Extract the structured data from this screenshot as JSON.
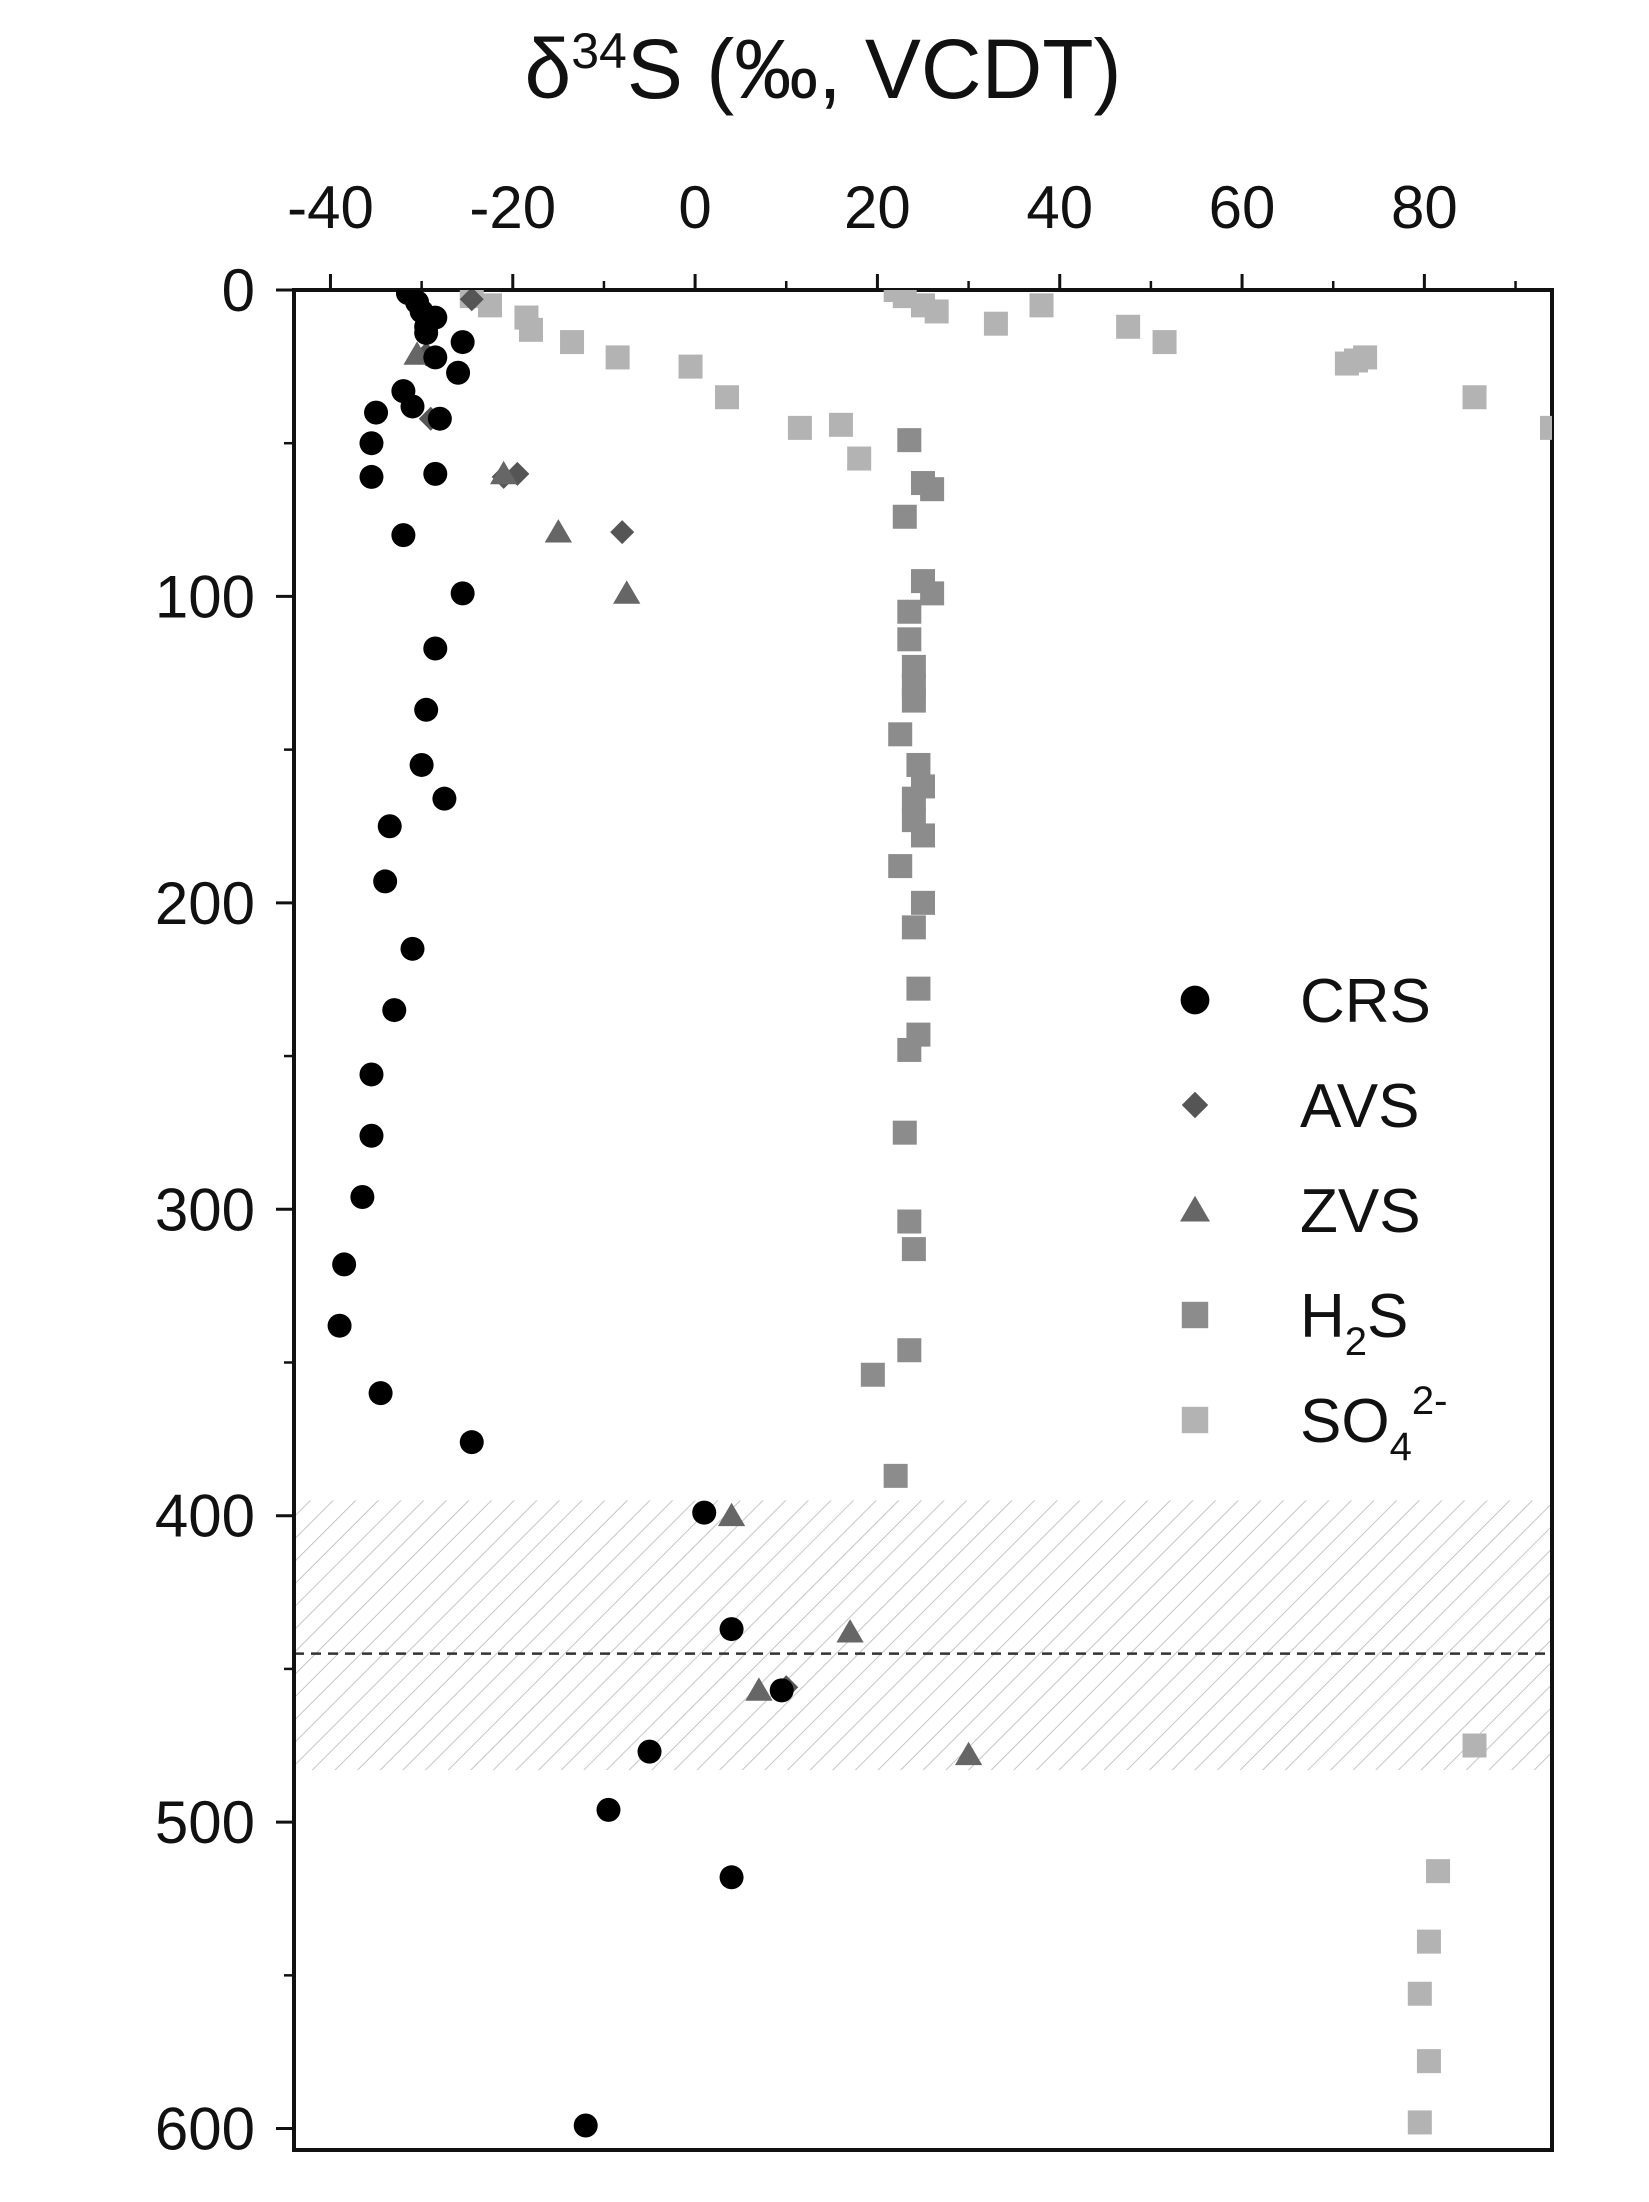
{
  "chart_data": {
    "type": "scatter",
    "title": "δ34S (‰, VCDT)",
    "title_parts": {
      "prefix": "δ",
      "superscript": "34",
      "suffix": "S (‰, VCDT)"
    },
    "xlabel": "δ34S (‰, VCDT)",
    "ylabel": "",
    "xlim": [
      -44,
      94
    ],
    "ylim": [
      0,
      607
    ],
    "y_inverted": true,
    "x_axis_position": "top",
    "x_ticks": [
      -40,
      -20,
      0,
      20,
      40,
      60,
      80
    ],
    "x_tick_labels": [
      "-40",
      "-20",
      "0",
      "20",
      "40",
      "60",
      "80"
    ],
    "y_ticks": [
      0,
      100,
      200,
      300,
      400,
      500,
      600
    ],
    "y_tick_labels": [
      "0",
      "100",
      "200",
      "300",
      "400",
      "500",
      "600"
    ],
    "grid": false,
    "legend_position": "right-middle",
    "shaded_band": {
      "y_from": 395,
      "y_to": 483,
      "pattern": "diagonal-hatch"
    },
    "dashed_line_y": 445,
    "series": [
      {
        "name": "CRS",
        "marker": "circle",
        "color": "#000000",
        "legend_label": "CRS",
        "points": [
          [
            -31.5,
            1
          ],
          [
            -30.5,
            4
          ],
          [
            -30,
            7
          ],
          [
            -28.5,
            9
          ],
          [
            -29.5,
            12
          ],
          [
            -29.5,
            14
          ],
          [
            -25.5,
            17
          ],
          [
            -28.5,
            22
          ],
          [
            -26,
            27
          ],
          [
            -32,
            33
          ],
          [
            -31,
            38
          ],
          [
            -35,
            40
          ],
          [
            -28,
            42
          ],
          [
            -35.5,
            50
          ],
          [
            -35.5,
            61
          ],
          [
            -28.5,
            60
          ],
          [
            -32,
            80
          ],
          [
            -25.5,
            99
          ],
          [
            -28.5,
            117
          ],
          [
            -29.5,
            137
          ],
          [
            -30,
            155
          ],
          [
            -27.5,
            166
          ],
          [
            -33.5,
            175
          ],
          [
            -34,
            193
          ],
          [
            -31,
            215
          ],
          [
            -33,
            235
          ],
          [
            -35.5,
            256
          ],
          [
            -35.5,
            276
          ],
          [
            -36.5,
            296
          ],
          [
            -38.5,
            318
          ],
          [
            -39,
            338
          ],
          [
            -34.5,
            360
          ],
          [
            -24.5,
            376
          ],
          [
            1,
            399
          ],
          [
            4,
            437
          ],
          [
            9.5,
            457
          ],
          [
            -5,
            477
          ],
          [
            -9.5,
            496
          ],
          [
            4,
            518
          ],
          [
            -12,
            599
          ]
        ]
      },
      {
        "name": "AVS",
        "marker": "diamond",
        "color": "#555555",
        "legend_label": "AVS",
        "points": [
          [
            -24.5,
            3
          ],
          [
            -29.5,
            21
          ],
          [
            -29,
            42
          ],
          [
            -19.5,
            60
          ],
          [
            -21,
            61
          ],
          [
            -8,
            79
          ],
          [
            10,
            456
          ]
        ]
      },
      {
        "name": "ZVS",
        "marker": "triangle",
        "color": "#666666",
        "legend_label": "ZVS",
        "points": [
          [
            -30.5,
            21
          ],
          [
            -21,
            60
          ],
          [
            -15,
            79
          ],
          [
            -7.5,
            99
          ],
          [
            4,
            400
          ],
          [
            17,
            438
          ],
          [
            7,
            457
          ],
          [
            30,
            478
          ]
        ]
      },
      {
        "name": "H2S",
        "marker": "square",
        "color": "#8c8c8c",
        "legend_label": "H2S",
        "points": [
          [
            23.5,
            49
          ],
          [
            25,
            63
          ],
          [
            26,
            65
          ],
          [
            23,
            74
          ],
          [
            25,
            95
          ],
          [
            26,
            99
          ],
          [
            23.5,
            105
          ],
          [
            23.5,
            114
          ],
          [
            24,
            123
          ],
          [
            24,
            129
          ],
          [
            24,
            134
          ],
          [
            22.5,
            145
          ],
          [
            24.5,
            155
          ],
          [
            25,
            162
          ],
          [
            24,
            166
          ],
          [
            24,
            173
          ],
          [
            25,
            178
          ],
          [
            22.5,
            188
          ],
          [
            25,
            200
          ],
          [
            24,
            208
          ],
          [
            24.5,
            228
          ],
          [
            24.5,
            243
          ],
          [
            23.5,
            248
          ],
          [
            23,
            275
          ],
          [
            23.5,
            304
          ],
          [
            24,
            313
          ],
          [
            23.5,
            346
          ],
          [
            19.5,
            354
          ],
          [
            22,
            387
          ]
        ]
      },
      {
        "name": "SO4 2-",
        "marker": "square",
        "color": "#b3b3b3",
        "legend_label": "SO4 2-",
        "points": [
          [
            -24.5,
            2
          ],
          [
            -22.5,
            5
          ],
          [
            -18.5,
            9
          ],
          [
            -18,
            13
          ],
          [
            -13.5,
            17
          ],
          [
            -8.5,
            22
          ],
          [
            -0.5,
            25
          ],
          [
            3.5,
            35
          ],
          [
            11.5,
            45
          ],
          [
            16,
            44
          ],
          [
            18,
            55
          ],
          [
            22,
            0
          ],
          [
            23,
            2
          ],
          [
            25,
            5
          ],
          [
            26.5,
            7
          ],
          [
            33,
            11
          ],
          [
            38,
            5
          ],
          [
            47.5,
            12
          ],
          [
            51.5,
            17
          ],
          [
            71.5,
            24
          ],
          [
            72.5,
            23
          ],
          [
            73.5,
            22
          ],
          [
            85.5,
            35
          ],
          [
            94,
            45
          ],
          [
            85.5,
            475
          ],
          [
            81.5,
            516
          ],
          [
            80.5,
            539
          ],
          [
            79.5,
            556
          ],
          [
            80.5,
            578
          ],
          [
            79.5,
            598
          ]
        ]
      }
    ]
  },
  "legend": {
    "items": [
      {
        "label": "CRS",
        "sub": "",
        "sup": ""
      },
      {
        "label": "AVS",
        "sub": "",
        "sup": ""
      },
      {
        "label": "ZVS",
        "sub": "",
        "sup": ""
      },
      {
        "label": "H",
        "sub": "2",
        "sup": "",
        "tail": "S"
      },
      {
        "label": "SO",
        "sub": "4",
        "sup": "2-",
        "tail": ""
      }
    ]
  }
}
